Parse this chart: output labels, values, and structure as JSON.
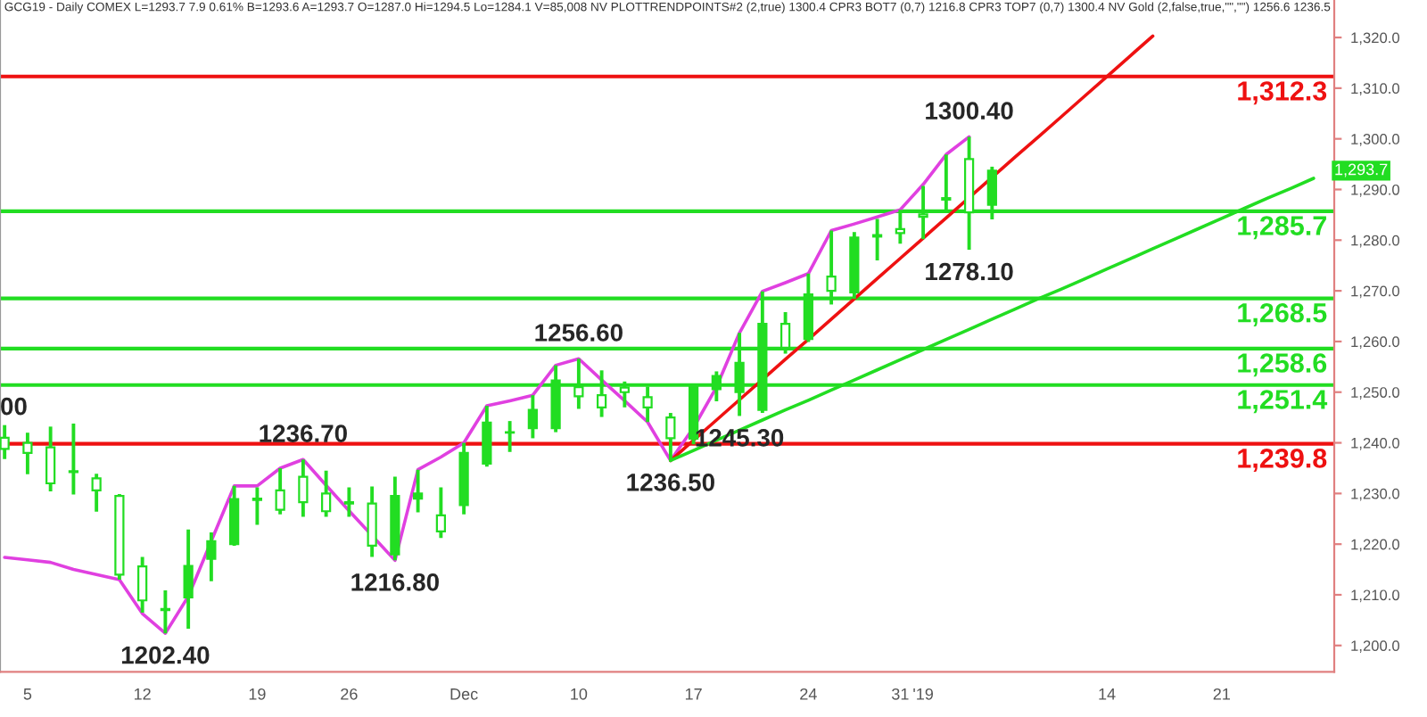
{
  "chart_data": {
    "type": "candlestick",
    "title": "GCG19 - Daily COMEX L=1293.7 7.9 0.61% B=1293.6 A=1293.7 O=1287.0 Hi=1294.5 Lo=1284.1 V=85,008 NV PLOTTRENDPOINTS#2 (2,true) 1300.4 CPR3 BOT7 (0,7) 1216.8 CPR3 TOP7 (0,7) 1300.4 NV Gold (2,false,true,\"\",\"\") 1256.6 1236.5",
    "color": "#22dd22",
    "categories": [
      null,
      "5",
      null,
      null,
      null,
      null,
      "12",
      null,
      null,
      null,
      null,
      "19",
      null,
      null,
      null,
      "26",
      null,
      null,
      null,
      null,
      "Dec",
      null,
      null,
      null,
      null,
      "10",
      null,
      null,
      null,
      null,
      "17",
      null,
      null,
      null,
      null,
      "24",
      null,
      null,
      null,
      "31",
      "'19",
      null,
      null,
      null,
      null,
      null,
      null,
      null,
      "14",
      null,
      null,
      null,
      null,
      "21",
      null,
      null,
      null,
      null
    ],
    "ohlc": [
      [
        1241.0,
        1243.5,
        1236.8,
        1238.8
      ],
      [
        1240.0,
        1242.0,
        1233.8,
        1238.0
      ],
      [
        1239.1,
        1243.2,
        1230.4,
        1232.0
      ],
      [
        1234.2,
        1243.8,
        1229.8,
        1234.4
      ],
      [
        1233.0,
        1233.9,
        1226.4,
        1230.6
      ],
      [
        1229.5,
        1229.9,
        1213.0,
        1214.0
      ],
      [
        1215.6,
        1217.5,
        1206.5,
        1208.9
      ],
      [
        1207.0,
        1210.9,
        1202.4,
        1207.2
      ],
      [
        1209.5,
        1222.9,
        1203.3,
        1215.7
      ],
      [
        1217.1,
        1222.3,
        1212.7,
        1220.6
      ],
      [
        1220.0,
        1231.5,
        1219.7,
        1228.9
      ],
      [
        1229.0,
        1231.2,
        1223.8,
        1228.7
      ],
      [
        1230.6,
        1235.0,
        1225.9,
        1226.8
      ],
      [
        1233.3,
        1236.7,
        1225.4,
        1228.3
      ],
      [
        1230.0,
        1234.5,
        1225.4,
        1226.5
      ],
      [
        1228.3,
        1231.2,
        1225.4,
        1228.0
      ],
      [
        1228.0,
        1231.4,
        1217.5,
        1219.7
      ],
      [
        1218.0,
        1233.3,
        1216.8,
        1229.5
      ],
      [
        1229.0,
        1234.7,
        1226.3,
        1230.0
      ],
      [
        1225.7,
        1231.2,
        1221.2,
        1222.5
      ],
      [
        1227.7,
        1240.0,
        1225.9,
        1238.0
      ],
      [
        1235.9,
        1247.3,
        1235.3,
        1244.0
      ],
      [
        1242.0,
        1244.3,
        1238.2,
        1242.1
      ],
      [
        1242.9,
        1249.4,
        1240.9,
        1246.5
      ],
      [
        1242.9,
        1255.3,
        1242.1,
        1252.3
      ],
      [
        1251.0,
        1256.6,
        1246.7,
        1249.2
      ],
      [
        1249.4,
        1254.3,
        1245.1,
        1247.0
      ],
      [
        1250.9,
        1252.1,
        1247.0,
        1250.0
      ],
      [
        1249.0,
        1251.1,
        1244.1,
        1247.0
      ],
      [
        1245.0,
        1245.9,
        1236.5,
        1240.9
      ],
      [
        1240.8,
        1251.7,
        1239.7,
        1251.1
      ],
      [
        1250.6,
        1254.1,
        1248.2,
        1253.2
      ],
      [
        1250.0,
        1261.7,
        1245.3,
        1255.8
      ],
      [
        1246.5,
        1269.9,
        1245.9,
        1263.5
      ],
      [
        1263.5,
        1265.8,
        1257.6,
        1258.8
      ],
      [
        1260.5,
        1273.4,
        1259.9,
        1269.3
      ],
      [
        1272.8,
        1281.9,
        1267.3,
        1270.0
      ],
      [
        1269.7,
        1281.6,
        1268.4,
        1280.5
      ],
      [
        1281.0,
        1284.2,
        1276.0,
        1280.7
      ],
      [
        1282.2,
        1286.0,
        1279.3,
        1281.4
      ],
      [
        1285.1,
        1290.7,
        1280.2,
        1284.6
      ],
      [
        1288.0,
        1296.9,
        1285.5,
        1288.3
      ],
      [
        1296.0,
        1300.4,
        1278.1,
        1285.5
      ],
      [
        1287.0,
        1294.5,
        1284.1,
        1293.7
      ],
      null,
      null,
      null,
      null,
      null,
      null,
      null,
      null,
      null,
      null,
      null,
      null,
      null,
      null
    ],
    "series": [
      {
        "type": "line",
        "color": "#e040e0",
        "values": [
          1217.4,
          1216.9,
          1216.4,
          1215.0,
          1214.0,
          1213.0,
          1206.3,
          1202.4,
          1209.7,
          1220.6,
          1231.5,
          1231.5,
          1235.0,
          1236.7,
          1231.6,
          1226.6,
          1221.7,
          1216.8,
          1234.7,
          1237.2,
          1240.0,
          1247.3,
          1248.3,
          1249.4,
          1255.3,
          1256.6,
          1252.4,
          1248.3,
          1244.1,
          1236.5,
          1243.0,
          1251.0,
          1261.7,
          1269.9,
          1271.6,
          1273.4,
          1281.9,
          1283.2,
          1284.6,
          1286.0,
          1291.0,
          1296.9,
          1300.4,
          null,
          null,
          null,
          null,
          null,
          null,
          null,
          null,
          null,
          null,
          null,
          null,
          null,
          null,
          null
        ]
      },
      {
        "type": "line",
        "color": "#ee1111",
        "values": [
          null,
          null,
          null,
          null,
          null,
          null,
          null,
          null,
          null,
          null,
          null,
          null,
          null,
          null,
          null,
          null,
          null,
          null,
          null,
          null,
          null,
          null,
          null,
          null,
          null,
          null,
          null,
          null,
          null,
          1236.5,
          1240.5,
          1244.5,
          1248.5,
          1252.5,
          1256.5,
          1260.4,
          1264.4,
          1268.4,
          1272.4,
          1276.4,
          1280.4,
          1284.4,
          1288.4,
          1292.4,
          1296.4,
          1300.3,
          1304.3,
          1308.3,
          1312.3,
          1316.3,
          1320.3,
          null,
          null,
          null,
          null,
          null,
          null,
          null
        ]
      },
      {
        "type": "line",
        "color": "#22dd22",
        "values": [
          null,
          null,
          null,
          null,
          null,
          null,
          null,
          null,
          null,
          null,
          null,
          null,
          null,
          null,
          null,
          null,
          null,
          null,
          null,
          null,
          null,
          null,
          null,
          null,
          null,
          null,
          null,
          null,
          null,
          1236.5,
          1238.5,
          1240.5,
          1242.5,
          1244.5,
          1246.5,
          1248.4,
          1250.4,
          1252.4,
          1254.4,
          1256.4,
          1258.4,
          1260.4,
          1262.4,
          1264.4,
          1266.4,
          1268.4,
          1270.3,
          1272.3,
          1274.3,
          1276.3,
          1278.3,
          1280.3,
          1282.3,
          1284.3,
          1286.3,
          1288.3,
          1290.2,
          1292.2
        ]
      }
    ],
    "ylim": [
      1194.8,
      1327.4
    ],
    "yticks": [
      {
        "value": 1200,
        "label": "1,200.0"
      },
      {
        "value": 1210,
        "label": "1,210.0"
      },
      {
        "value": 1220,
        "label": "1,220.0"
      },
      {
        "value": 1230,
        "label": "1,230.0"
      },
      {
        "value": 1240,
        "label": "1,240.0"
      },
      {
        "value": 1250,
        "label": "1,250.0"
      },
      {
        "value": 1260,
        "label": "1,260.0"
      },
      {
        "value": 1270,
        "label": "1,270.0"
      },
      {
        "value": 1280,
        "label": "1,280.0"
      },
      {
        "value": 1290,
        "label": "1,290.0"
      },
      {
        "value": 1300,
        "label": "1,300.0"
      },
      {
        "value": 1310,
        "label": "1,310.0"
      },
      {
        "value": 1320,
        "label": "1,320.0"
      }
    ],
    "ref_lines": [
      {
        "axis": "y",
        "value": 1312.3,
        "label": "1,312.3",
        "color": "#ee1111"
      },
      {
        "axis": "y",
        "value": 1285.7,
        "label": "1,285.7",
        "color": "#22dd22"
      },
      {
        "axis": "y",
        "value": 1268.5,
        "label": "1,268.5",
        "color": "#22dd22"
      },
      {
        "axis": "y",
        "value": 1258.6,
        "label": "1,258.6",
        "color": "#22dd22"
      },
      {
        "axis": "y",
        "value": 1251.4,
        "label": "1,251.4",
        "color": "#22dd22"
      },
      {
        "axis": "y",
        "value": 1239.8,
        "label": "1,239.8",
        "color": "#ee1111"
      }
    ],
    "annotations": [
      "00",
      {
        "text": "1202.40",
        "y": 1202.4
      },
      {
        "text": "1236.70",
        "y": 1236.7
      },
      {
        "text": "1216.80",
        "y": 1216.8
      },
      {
        "text": "1256.60",
        "y": 1256.6
      },
      {
        "text": "1236.50",
        "y": 1236.5
      },
      {
        "text": "1245.30",
        "y": 1245.3
      },
      {
        "text": "1300.40",
        "y": 1300.4
      },
      {
        "text": "1278.10",
        "y": 1278.1
      },
      {
        "text": "1,293.7",
        "y": 1293.7
      }
    ],
    "legend": false,
    "grid": false
  }
}
